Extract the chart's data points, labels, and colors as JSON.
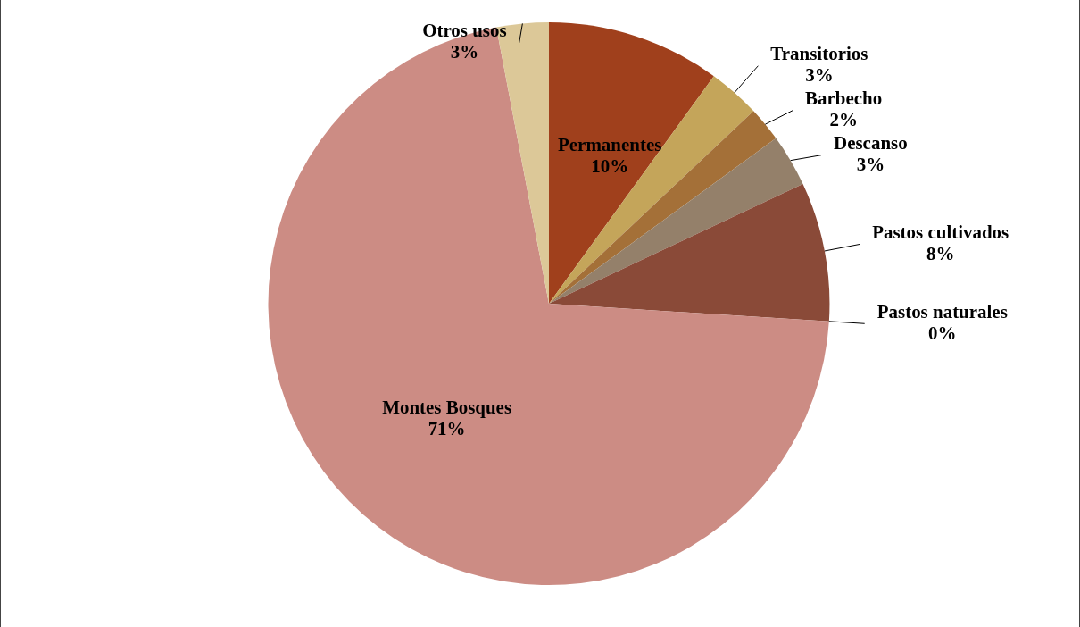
{
  "chart_data": {
    "type": "pie",
    "categories": [
      "Permanentes",
      "Transitorios",
      "Barbecho",
      "Descanso",
      "Pastos cultivados",
      "Pastos naturales",
      "Montes Bosques",
      "Otros usos"
    ],
    "values": [
      10,
      3,
      2,
      3,
      8,
      0,
      71,
      3
    ],
    "value_labels": [
      "10%",
      "3%",
      "2%",
      "3%",
      "8%",
      "0%",
      "71%",
      "3%"
    ],
    "colors": [
      "#a0401c",
      "#c4a55a",
      "#a47038",
      "#94806a",
      "#8a4a38",
      "#a09070",
      "#cc8c84",
      "#dcc898"
    ]
  }
}
